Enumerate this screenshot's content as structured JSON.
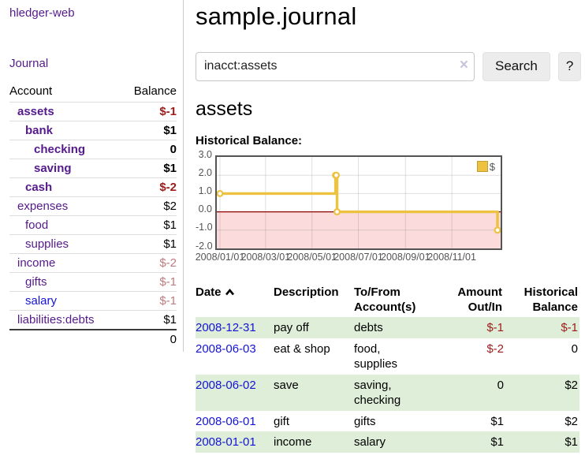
{
  "sidebar": {
    "app_title": "hledger-web",
    "journal_link": "Journal",
    "accounts": {
      "headers": {
        "account": "Account",
        "balance": "Balance"
      },
      "rows": [
        {
          "name": "assets",
          "balance": "$-1"
        },
        {
          "name": "bank",
          "balance": "$1"
        },
        {
          "name": "checking",
          "balance": "0"
        },
        {
          "name": "saving",
          "balance": "$1"
        },
        {
          "name": "cash",
          "balance": "$-2"
        },
        {
          "name": "expenses",
          "balance": "$2"
        },
        {
          "name": "food",
          "balance": "$1"
        },
        {
          "name": "supplies",
          "balance": "$1"
        },
        {
          "name": "income",
          "balance": "$-2"
        },
        {
          "name": "gifts",
          "balance": "$-1"
        },
        {
          "name": "salary",
          "balance": "$-1"
        },
        {
          "name": "liabilities:debts",
          "balance": "$1"
        }
      ],
      "total": "0"
    }
  },
  "main": {
    "title": "sample.journal",
    "search": {
      "value": "inacct:assets",
      "clear_icon": "×",
      "button_label": "Search",
      "help_label": "?"
    },
    "account_heading": "assets",
    "chart_label": "Historical Balance:",
    "table": {
      "headers": {
        "date": "Date",
        "description": "Description",
        "accounts": "To/From Account(s)",
        "amount": "Amount Out/In",
        "balance": "Historical Balance"
      },
      "rows": [
        {
          "date": "2008-12-31",
          "description": "pay off",
          "accounts": "debts",
          "amount": "$-1",
          "balance": "$-1"
        },
        {
          "date": "2008-06-03",
          "description": "eat & shop",
          "accounts": "food, supplies",
          "amount": "$-2",
          "balance": "0"
        },
        {
          "date": "2008-06-02",
          "description": "save",
          "accounts": "saving, checking",
          "amount": "0",
          "balance": "$2"
        },
        {
          "date": "2008-06-01",
          "description": "gift",
          "accounts": "gifts",
          "amount": "$1",
          "balance": "$2"
        },
        {
          "date": "2008-01-01",
          "description": "income",
          "accounts": "salary",
          "amount": "$1",
          "balance": "$1"
        }
      ]
    }
  },
  "chart_data": {
    "type": "line",
    "style": "step-after",
    "title": "Historical Balance",
    "series": [
      {
        "name": "$",
        "color": "#edc240",
        "points": [
          {
            "date": "2008-01-01",
            "value": 1
          },
          {
            "date": "2008-06-01",
            "value": 2
          },
          {
            "date": "2008-06-02",
            "value": 2
          },
          {
            "date": "2008-06-03",
            "value": 0
          },
          {
            "date": "2008-12-31",
            "value": -1
          }
        ]
      }
    ],
    "xlabel": "",
    "ylabel": "",
    "ylim": [
      -2,
      3
    ],
    "y_ticks": [
      3.0,
      2.0,
      1.0,
      0.0,
      -1.0,
      -2.0
    ],
    "x_ticks": [
      "2008/01/01",
      "2008/03/01",
      "2008/05/01",
      "2008/07/01",
      "2008/09/01",
      "2008/11/01"
    ],
    "x_range": [
      "2008-01-01",
      "2008-12-31"
    ],
    "grid": true,
    "legend_position": "top-right",
    "colors": {
      "line": "#edc240",
      "marker_fill": "#ffffff",
      "negative_region": "#fbdbdb",
      "zero_line": "#8b0000",
      "gridline": "#dcdcdc",
      "border": "#545454"
    }
  }
}
